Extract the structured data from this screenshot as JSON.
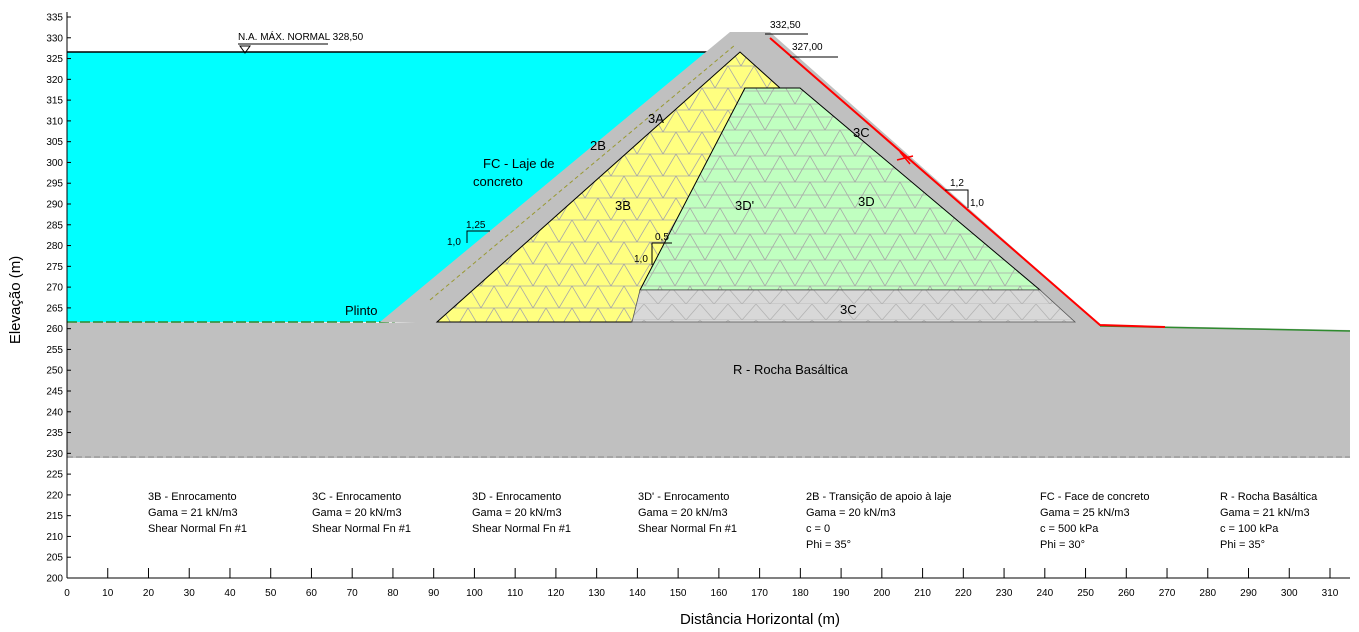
{
  "axes": {
    "xlabel": "Distância Horizontal (m)",
    "ylabel": "Elevação (m)",
    "xlim": [
      0,
      312
    ],
    "ylim": [
      200,
      338
    ],
    "x_ticks": [
      "0",
      "10",
      "20",
      "30",
      "40",
      "50",
      "60",
      "70",
      "80",
      "90",
      "100",
      "110",
      "120",
      "130",
      "140",
      "150",
      "160",
      "170",
      "180",
      "190",
      "200",
      "210",
      "220",
      "230",
      "240",
      "250",
      "260",
      "270",
      "280",
      "290",
      "300",
      "310"
    ],
    "y_ticks": [
      "200",
      "205",
      "210",
      "215",
      "220",
      "225",
      "230",
      "235",
      "240",
      "245",
      "250",
      "255",
      "260",
      "265",
      "270",
      "275",
      "280",
      "285",
      "290",
      "295",
      "300",
      "305",
      "310",
      "315",
      "320",
      "325",
      "330",
      "335"
    ]
  },
  "annotations": {
    "water_level": "N.A. MÁX. NORMAL 328,50",
    "crest_level": "332,50",
    "parapet_level": "327,00",
    "slope_upstream_h": "1,25",
    "slope_upstream_v": "1,0",
    "slope_core_h": "0,5",
    "slope_core_v": "1,0",
    "slope_downstream_h": "1,2",
    "slope_downstream_v": "1,0"
  },
  "zones": {
    "z3a": "3A",
    "z2b": "2B",
    "z3b": "3B",
    "z3d_prime": "3D'",
    "z3d": "3D",
    "z3c_top": "3C",
    "z3c_base": "3C",
    "face": "FC - Laje de\nconcreto",
    "plinth": "Plinto",
    "rock": "R - Rocha Basáltica"
  },
  "materials": [
    {
      "name": "3B - Enrocamento",
      "lines": [
        "Gama = 21 kN/m3",
        "Shear Normal Fn #1"
      ]
    },
    {
      "name": "3C - Enrocamento",
      "lines": [
        "Gama = 20 kN/m3",
        "Shear Normal Fn #1"
      ]
    },
    {
      "name": "3D - Enrocamento",
      "lines": [
        "Gama = 20 kN/m3",
        "Shear Normal Fn #1"
      ]
    },
    {
      "name": "3D' - Enrocamento",
      "lines": [
        "Gama = 20 kN/m3",
        "Shear Normal Fn #1"
      ]
    },
    {
      "name": "2B - Transição de apoio à laje",
      "lines": [
        "Gama = 20 kN/m3",
        "c = 0",
        "Phi = 35°"
      ]
    },
    {
      "name": "FC - Face de concreto",
      "lines": [
        "Gama = 25 kN/m3",
        "c = 500 kPa",
        "Phi = 30°"
      ]
    },
    {
      "name": "R - Rocha Basáltica",
      "lines": [
        "Gama = 21 kN/m3",
        "c = 100 kPa",
        "Phi = 35°"
      ]
    }
  ],
  "colors": {
    "water": "#00ffff",
    "gray_zone": "#c0c0c0",
    "yellow_zone": "#ffff80",
    "green_zone": "#c0ffc0",
    "mesh": "#a8a8a8",
    "red_line": "#ff0000",
    "green_line": "#2e8b2e"
  }
}
